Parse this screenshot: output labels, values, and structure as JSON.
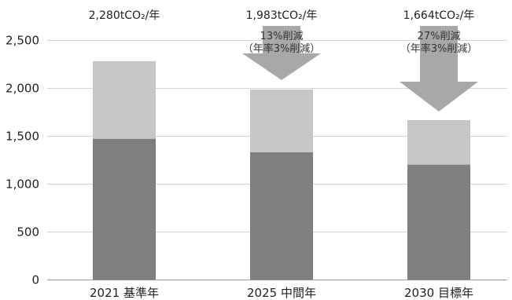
{
  "chart_data": {
    "type": "bar",
    "stacked": true,
    "categories": [
      "2021 基準年",
      "2025 中間年",
      "2030 目標年"
    ],
    "series": [
      {
        "values": [
          1470,
          1330,
          1200
        ],
        "color": "#7f7f7f"
      },
      {
        "values": [
          810,
          653,
          464
        ],
        "color": "#c6c6c6"
      }
    ],
    "totals": [
      "2,280tCO₂/年",
      "1,983tCO₂/年",
      "1,664tCO₂/年"
    ],
    "annotations": [
      {
        "category_index": 1,
        "lines": [
          "13%削減",
          "（年率3%削減）"
        ]
      },
      {
        "category_index": 2,
        "lines": [
          "27%削減",
          "（年率3%削減）"
        ]
      }
    ],
    "yticks": [
      "0",
      "500",
      "1,000",
      "1,500",
      "2,000",
      "2,500"
    ],
    "ytick_values": [
      0,
      500,
      1000,
      1500,
      2000,
      2500
    ],
    "ylim": [
      0,
      2500
    ],
    "grid": true,
    "arrow_color": "#a8a8a8"
  }
}
